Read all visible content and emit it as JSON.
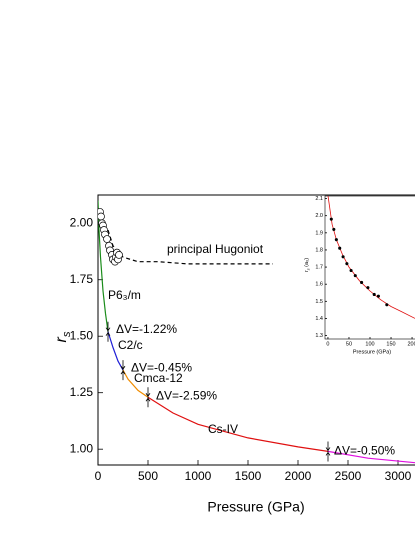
{
  "chart_data": [
    {
      "type": "line",
      "xlabel": "Pressure (GPa)",
      "ylabel": "r",
      "ylabel_sub": "s",
      "xlim": [
        0,
        3170
      ],
      "ylim": [
        0.93,
        2.125
      ],
      "xticks": [
        0,
        500,
        1000,
        1500,
        2000,
        2500,
        3000
      ],
      "yticks": [
        {
          "value": 1.0,
          "label": "1.00"
        },
        {
          "value": 1.25,
          "label": "1.25"
        },
        {
          "value": 1.5,
          "label": "1.50"
        },
        {
          "value": 1.75,
          "label": "1.75"
        },
        {
          "value": 2.0,
          "label": "2.00"
        }
      ],
      "series": [
        {
          "name": "P6₃/m",
          "color": "#1a8c1a",
          "x": [
            0,
            10,
            25,
            50,
            75,
            100
          ],
          "values": [
            2.1,
            1.97,
            1.85,
            1.7,
            1.6,
            1.52
          ]
        },
        {
          "name": "C2/c",
          "color": "#1f1fd6",
          "x": [
            100,
            150,
            200,
            250
          ],
          "values": [
            1.52,
            1.45,
            1.39,
            1.35
          ]
        },
        {
          "name": "Cmca-12",
          "color": "#f08c00",
          "x": [
            250,
            300,
            400,
            500
          ],
          "values": [
            1.35,
            1.31,
            1.26,
            1.23
          ]
        },
        {
          "name": "Cs-IV",
          "color": "#e01010",
          "x": [
            500,
            750,
            1000,
            1500,
            2000,
            2300
          ],
          "values": [
            1.23,
            1.16,
            1.11,
            1.05,
            1.01,
            0.99
          ]
        },
        {
          "name": "",
          "color": "#e010e0",
          "x": [
            2300,
            2700,
            3170
          ],
          "values": [
            0.99,
            0.96,
            0.94
          ]
        },
        {
          "name": "principal Hugoniot",
          "color": "#000000",
          "dashed": true,
          "x": [
            100,
            150,
            250,
            400,
            600,
            900,
            1300,
            1750
          ],
          "values": [
            1.97,
            1.9,
            1.85,
            1.83,
            1.83,
            1.82,
            1.82,
            1.82
          ]
        }
      ],
      "points": {
        "color": "#000000",
        "x": [
          20,
          30,
          40,
          50,
          60,
          70,
          90,
          110,
          120,
          140,
          150,
          170,
          180,
          190,
          200,
          210
        ],
        "values": [
          2.05,
          2.03,
          2.0,
          1.99,
          1.97,
          1.95,
          1.93,
          1.9,
          1.88,
          1.86,
          1.84,
          1.83,
          1.85,
          1.87,
          1.84,
          1.86
        ]
      },
      "annotations": [
        {
          "text": "ΔV=-1.22%",
          "x": 100,
          "y": 1.52
        },
        {
          "text": "ΔV=-0.45%",
          "x": 250,
          "y": 1.35
        },
        {
          "text": "ΔV=-2.59%",
          "x": 500,
          "y": 1.23
        },
        {
          "text": "ΔV=-0.50%",
          "x": 2300,
          "y": 0.99
        }
      ]
    },
    {
      "type": "line",
      "xlabel": "Pressure (GPa)",
      "ylabel": "r",
      "ylabel_sub": "s",
      "ylabel_suffix": " (a₀)",
      "xlim": [
        -7,
        207
      ],
      "ylim": [
        1.28,
        2.115
      ],
      "xticks": [
        0,
        50,
        100,
        150,
        200
      ],
      "yticks": [
        1.3,
        1.4,
        1.5,
        1.6,
        1.7,
        1.8,
        1.9,
        {
          "value": 2.0,
          "label": "2.0"
        },
        2.1
      ],
      "series": [
        {
          "name": "",
          "color": "#e01010",
          "x": [
            0,
            10,
            20,
            35,
            50,
            75,
            100,
            125,
            150,
            175,
            207
          ],
          "values": [
            2.12,
            1.95,
            1.86,
            1.77,
            1.7,
            1.62,
            1.56,
            1.51,
            1.47,
            1.44,
            1.4
          ]
        }
      ],
      "points": {
        "color": "#000000",
        "x": [
          8,
          14,
          20,
          28,
          36,
          45,
          55,
          65,
          80,
          95,
          110,
          120,
          140
        ],
        "values": [
          1.98,
          1.92,
          1.86,
          1.81,
          1.76,
          1.72,
          1.68,
          1.65,
          1.61,
          1.58,
          1.54,
          1.53,
          1.48
        ]
      }
    }
  ]
}
